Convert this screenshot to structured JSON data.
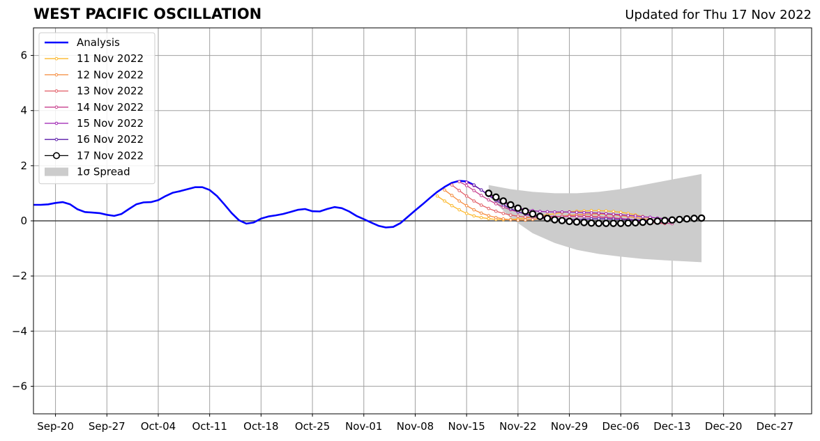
{
  "header": {
    "title": "WEST PACIFIC OSCILLATION",
    "subtitle": "Updated for Thu 17 Nov 2022"
  },
  "chart_data": {
    "type": "line",
    "title": "WEST PACIFIC OSCILLATION",
    "subtitle": "Updated for Thu 17 Nov 2022",
    "xlabel": "",
    "ylabel": "",
    "x_start": "2022-09-17",
    "x_end": "2023-01-01",
    "ylim": [
      -7,
      7
    ],
    "yticks": [
      -6,
      -4,
      -2,
      0,
      2,
      4,
      6
    ],
    "ytick_labels": [
      "−6",
      "−4",
      "−2",
      "0",
      "2",
      "4",
      "6"
    ],
    "xticks": [
      {
        "date": "2022-09-20",
        "label": "Sep-20"
      },
      {
        "date": "2022-09-27",
        "label": "Sep-27"
      },
      {
        "date": "2022-10-04",
        "label": "Oct-04"
      },
      {
        "date": "2022-10-11",
        "label": "Oct-11"
      },
      {
        "date": "2022-10-18",
        "label": "Oct-18"
      },
      {
        "date": "2022-10-25",
        "label": "Oct-25"
      },
      {
        "date": "2022-11-01",
        "label": "Nov-01"
      },
      {
        "date": "2022-11-08",
        "label": "Nov-08"
      },
      {
        "date": "2022-11-15",
        "label": "Nov-15"
      },
      {
        "date": "2022-11-22",
        "label": "Nov-22"
      },
      {
        "date": "2022-11-29",
        "label": "Nov-29"
      },
      {
        "date": "2022-12-06",
        "label": "Dec-06"
      },
      {
        "date": "2022-12-13",
        "label": "Dec-13"
      },
      {
        "date": "2022-12-20",
        "label": "Dec-20"
      },
      {
        "date": "2022-12-27",
        "label": "Dec-27"
      }
    ],
    "grid": true,
    "legend_position": "top-left",
    "zero_line": true,
    "spread": {
      "name": "1σ Spread",
      "color": "#cccccc",
      "x": [
        "2022-11-18",
        "2022-11-21",
        "2022-11-24",
        "2022-11-27",
        "2022-11-30",
        "2022-12-03",
        "2022-12-06",
        "2022-12-09",
        "2022-12-12",
        "2022-12-15",
        "2022-12-17"
      ],
      "upper": [
        1.3,
        1.15,
        1.05,
        1.0,
        1.0,
        1.05,
        1.15,
        1.3,
        1.45,
        1.6,
        1.7
      ],
      "lower": [
        0.9,
        0.1,
        -0.45,
        -0.8,
        -1.05,
        -1.2,
        -1.3,
        -1.38,
        -1.43,
        -1.47,
        -1.5
      ]
    },
    "series": [
      {
        "name": "Analysis",
        "color": "#0000ff",
        "style": "analysis",
        "start": "2022-09-17",
        "values": [
          0.58,
          0.58,
          0.6,
          0.65,
          0.68,
          0.6,
          0.42,
          0.32,
          0.3,
          0.28,
          0.22,
          0.18,
          0.25,
          0.43,
          0.6,
          0.67,
          0.68,
          0.75,
          0.9,
          1.02,
          1.08,
          1.15,
          1.22,
          1.22,
          1.12,
          0.9,
          0.6,
          0.28,
          0.02,
          -0.1,
          -0.06,
          0.08,
          0.16,
          0.2,
          0.25,
          0.32,
          0.4,
          0.43,
          0.35,
          0.34,
          0.43,
          0.5,
          0.46,
          0.34,
          0.18,
          0.06,
          -0.06,
          -0.18,
          -0.24,
          -0.22,
          -0.08,
          0.15,
          0.38,
          0.6,
          0.83,
          1.05,
          1.23,
          1.38,
          1.45,
          1.43,
          1.3
        ]
      },
      {
        "name": "11 Nov 2022",
        "color": "#fcb72a",
        "style": "forecast",
        "start": "2022-11-11",
        "values": [
          0.9,
          0.72,
          0.55,
          0.4,
          0.27,
          0.18,
          0.12,
          0.08,
          0.05,
          0.04,
          0.05,
          0.07,
          0.1,
          0.14,
          0.18,
          0.22,
          0.26,
          0.3,
          0.33,
          0.35,
          0.36,
          0.37,
          0.37,
          0.36,
          0.34,
          0.31,
          0.27,
          0.22,
          0.16,
          0.1
        ]
      },
      {
        "name": "12 Nov 2022",
        "color": "#f58a3c",
        "style": "forecast",
        "start": "2022-11-12",
        "values": [
          1.12,
          0.92,
          0.72,
          0.55,
          0.4,
          0.28,
          0.19,
          0.12,
          0.07,
          0.04,
          0.03,
          0.03,
          0.05,
          0.08,
          0.11,
          0.14,
          0.17,
          0.2,
          0.22,
          0.24,
          0.25,
          0.25,
          0.24,
          0.22,
          0.19,
          0.16,
          0.12,
          0.08,
          0.04,
          0.0
        ]
      },
      {
        "name": "13 Nov 2022",
        "color": "#e15b64",
        "style": "forecast",
        "start": "2022-11-13",
        "values": [
          1.3,
          1.1,
          0.9,
          0.72,
          0.57,
          0.45,
          0.35,
          0.27,
          0.21,
          0.17,
          0.14,
          0.13,
          0.13,
          0.14,
          0.15,
          0.16,
          0.17,
          0.17,
          0.17,
          0.16,
          0.15,
          0.13,
          0.11,
          0.08,
          0.05,
          0.02,
          -0.02,
          -0.06,
          -0.08,
          -0.1
        ]
      },
      {
        "name": "14 Nov 2022",
        "color": "#c73d8c",
        "style": "forecast",
        "start": "2022-11-14",
        "values": [
          1.42,
          1.28,
          1.1,
          0.92,
          0.76,
          0.62,
          0.5,
          0.4,
          0.32,
          0.26,
          0.22,
          0.19,
          0.17,
          0.16,
          0.16,
          0.16,
          0.16,
          0.15,
          0.14,
          0.13,
          0.12,
          0.1,
          0.08,
          0.06,
          0.03,
          0.0,
          -0.03,
          -0.06,
          -0.08,
          -0.1
        ]
      },
      {
        "name": "15 Nov 2022",
        "color": "#9b1bb0",
        "style": "forecast",
        "start": "2022-11-15",
        "values": [
          1.4,
          1.28,
          1.12,
          0.95,
          0.8,
          0.66,
          0.55,
          0.47,
          0.41,
          0.37,
          0.34,
          0.33,
          0.32,
          0.32,
          0.32,
          0.31,
          0.3,
          0.29,
          0.28,
          0.26,
          0.24,
          0.22,
          0.2,
          0.18,
          0.15,
          0.13,
          0.1,
          0.08,
          0.06,
          0.04
        ]
      },
      {
        "name": "16 Nov 2022",
        "color": "#5a1aa8",
        "style": "forecast",
        "start": "2022-11-16",
        "values": [
          1.3,
          1.12,
          0.92,
          0.74,
          0.58,
          0.44,
          0.33,
          0.24,
          0.17,
          0.12,
          0.08,
          0.06,
          0.05,
          0.05,
          0.05,
          0.06,
          0.07,
          0.07,
          0.07,
          0.06,
          0.05,
          0.04,
          0.03,
          0.02,
          0.01,
          0.0,
          0.01,
          0.03,
          0.05,
          0.07
        ]
      },
      {
        "name": "17 Nov 2022",
        "color": "#000000",
        "style": "current",
        "start": "2022-11-18",
        "values": [
          1.0,
          0.86,
          0.72,
          0.58,
          0.46,
          0.35,
          0.25,
          0.16,
          0.09,
          0.04,
          0.01,
          -0.02,
          -0.04,
          -0.06,
          -0.08,
          -0.09,
          -0.09,
          -0.09,
          -0.09,
          -0.08,
          -0.07,
          -0.05,
          -0.03,
          -0.01,
          0.01,
          0.03,
          0.05,
          0.07,
          0.09,
          0.1
        ]
      }
    ]
  }
}
